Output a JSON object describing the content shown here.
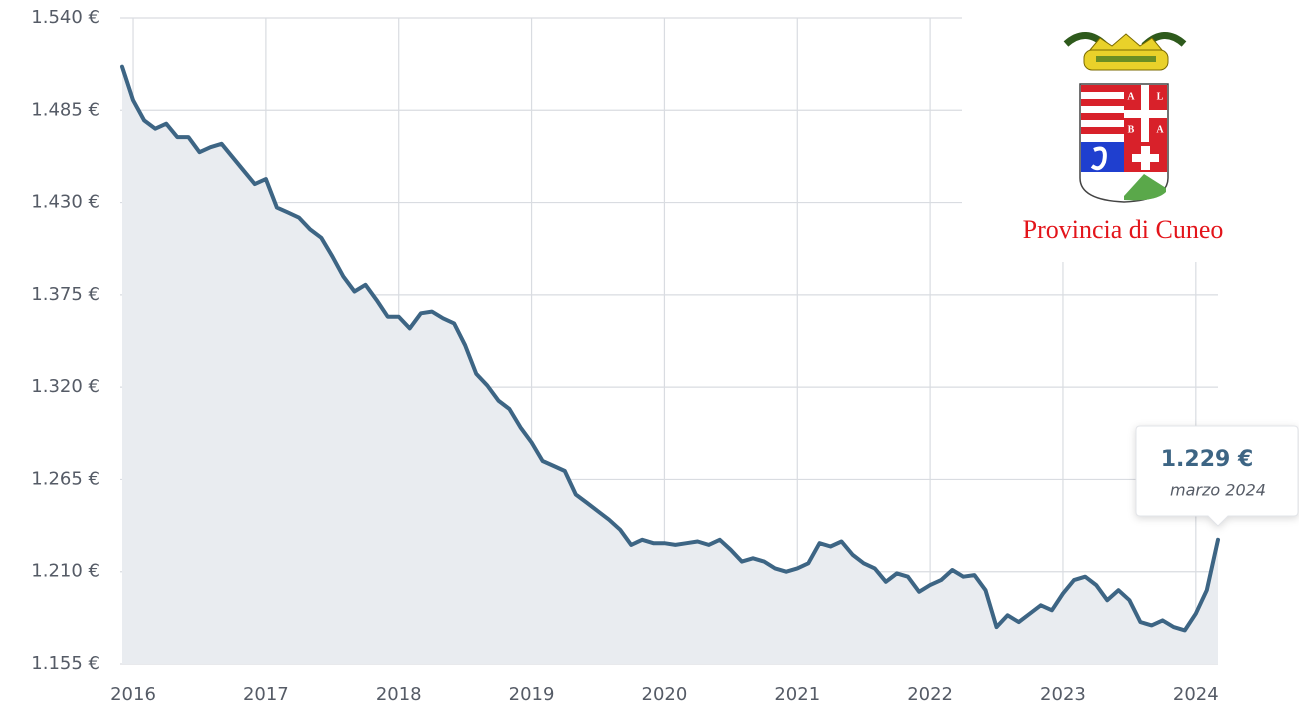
{
  "chart_data": {
    "type": "line",
    "x": [
      2015.917,
      2016,
      2016.083,
      2016.167,
      2016.25,
      2016.333,
      2016.417,
      2016.5,
      2016.583,
      2016.667,
      2016.75,
      2016.833,
      2016.917,
      2017,
      2017.083,
      2017.167,
      2017.25,
      2017.333,
      2017.417,
      2017.5,
      2017.583,
      2017.667,
      2017.75,
      2017.833,
      2017.917,
      2018,
      2018.083,
      2018.167,
      2018.25,
      2018.333,
      2018.417,
      2018.5,
      2018.583,
      2018.667,
      2018.75,
      2018.833,
      2018.917,
      2019,
      2019.083,
      2019.167,
      2019.25,
      2019.333,
      2019.417,
      2019.5,
      2019.583,
      2019.667,
      2019.75,
      2019.833,
      2019.917,
      2020,
      2020.083,
      2020.167,
      2020.25,
      2020.333,
      2020.417,
      2020.5,
      2020.583,
      2020.667,
      2020.75,
      2020.833,
      2020.917,
      2021,
      2021.083,
      2021.167,
      2021.25,
      2021.333,
      2021.417,
      2021.5,
      2021.583,
      2021.667,
      2021.75,
      2021.833,
      2021.917,
      2022,
      2022.083,
      2022.167,
      2022.25,
      2022.333,
      2022.417,
      2022.5,
      2022.583,
      2022.667,
      2022.75,
      2022.833,
      2022.917,
      2023,
      2023.083,
      2023.167,
      2023.25,
      2023.333,
      2023.417,
      2023.5,
      2023.583,
      2023.667,
      2023.75,
      2023.833,
      2023.917,
      2024,
      2024.083,
      2024.167
    ],
    "values": [
      1511,
      1491,
      1479,
      1474,
      1477,
      1469,
      1469,
      1460,
      1463,
      1465,
      1457,
      1449,
      1441,
      1444,
      1427,
      1424,
      1421,
      1414,
      1409,
      1398,
      1386,
      1377,
      1381,
      1372,
      1362,
      1362,
      1355,
      1364,
      1365,
      1361,
      1358,
      1345,
      1328,
      1321,
      1312,
      1307,
      1296,
      1287,
      1276,
      1273,
      1270,
      1256,
      1251,
      1246,
      1241,
      1235,
      1226,
      1229,
      1227,
      1227,
      1226,
      1227,
      1228,
      1226,
      1229,
      1223,
      1216,
      1218,
      1216,
      1212,
      1210,
      1212,
      1215,
      1227,
      1225,
      1228,
      1220,
      1215,
      1212,
      1204,
      1209,
      1207,
      1198,
      1202,
      1205,
      1211,
      1207,
      1208,
      1199,
      1177,
      1184,
      1180,
      1185,
      1190,
      1187,
      1197,
      1205,
      1207,
      1202,
      1193,
      1199,
      1193,
      1180,
      1178,
      1181,
      1177,
      1175,
      1185,
      1199,
      1229
    ],
    "color": "#3d6584",
    "fill": "#e9ecf0",
    "xlim": [
      2015.917,
      2024.167
    ],
    "xticks": [
      2016,
      2017,
      2018,
      2019,
      2020,
      2021,
      2022,
      2023,
      2024
    ],
    "ylim": [
      1155,
      1540
    ],
    "yticks": [
      {
        "value": 1155,
        "label": "1.155 €"
      },
      {
        "value": 1210,
        "label": "1.210 €"
      },
      {
        "value": 1265,
        "label": "1.265 €"
      },
      {
        "value": 1320,
        "label": "1.320 €"
      },
      {
        "value": 1375,
        "label": "1.375 €"
      },
      {
        "value": 1430,
        "label": "1.430 €"
      },
      {
        "value": 1485,
        "label": "1.485 €"
      },
      {
        "value": 1540,
        "label": "1.540 €"
      }
    ],
    "grid": true,
    "tooltip": {
      "label": "1.229 €",
      "date": "marzo 2024"
    }
  },
  "logo": {
    "text": "Provincia di Cuneo",
    "shield_letters": [
      "A",
      "L",
      "B",
      "A"
    ]
  }
}
